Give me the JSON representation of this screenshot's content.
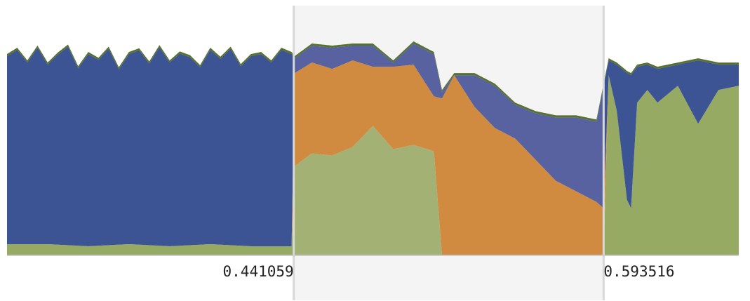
{
  "chart_data": {
    "type": "area",
    "stacked": true,
    "x_domain": [
      0.3,
      0.66
    ],
    "y_domain": [
      0,
      1
    ],
    "brush": {
      "range": [
        0.441059,
        0.593516
      ]
    },
    "tick_labels": [
      "0.441059",
      "0.593516"
    ],
    "colors": {
      "blue": "#3d5494",
      "blue_selected": "#5862a0",
      "orange": "#d08b40",
      "green": "#97aa63",
      "green_selected": "#a3b274",
      "dark_green": "#57722f",
      "brush_fill": "#f4f4f4",
      "brush_edge": "#d8d8d8",
      "axis": "#cccccc"
    },
    "series": [
      {
        "key": "green",
        "x": [
          0.3,
          0.32,
          0.34,
          0.36,
          0.38,
          0.4,
          0.42,
          0.44,
          0.4415,
          0.45,
          0.46,
          0.47,
          0.48,
          0.49,
          0.5,
          0.51,
          0.514,
          0.52,
          0.54,
          0.56,
          0.58,
          0.59,
          0.5935,
          0.596,
          0.6,
          0.605,
          0.607,
          0.61,
          0.615,
          0.62,
          0.63,
          0.64,
          0.65,
          0.66
        ],
        "values": [
          0.05,
          0.05,
          0.04,
          0.05,
          0.04,
          0.05,
          0.04,
          0.04,
          0.42,
          0.48,
          0.47,
          0.51,
          0.61,
          0.5,
          0.52,
          0.49,
          0.0,
          0.0,
          0.0,
          0.0,
          0.0,
          0.0,
          0.0,
          0.85,
          0.68,
          0.26,
          0.22,
          0.72,
          0.78,
          0.72,
          0.8,
          0.62,
          0.78,
          0.8
        ]
      },
      {
        "key": "orange",
        "x": [
          0.3,
          0.44,
          0.4415,
          0.45,
          0.46,
          0.47,
          0.48,
          0.49,
          0.5,
          0.51,
          0.514,
          0.52,
          0.53,
          0.54,
          0.55,
          0.56,
          0.57,
          0.58,
          0.59,
          0.5935,
          0.596,
          0.66
        ],
        "values": [
          0.0,
          0.0,
          0.44,
          0.43,
          0.41,
          0.41,
          0.28,
          0.39,
          0.38,
          0.26,
          0.74,
          0.85,
          0.7,
          0.6,
          0.55,
          0.45,
          0.35,
          0.3,
          0.25,
          0.22,
          0.0,
          0.0
        ]
      },
      {
        "key": "blue",
        "x": [
          0.3,
          0.305,
          0.31,
          0.315,
          0.32,
          0.325,
          0.33,
          0.335,
          0.34,
          0.345,
          0.35,
          0.355,
          0.36,
          0.365,
          0.37,
          0.375,
          0.38,
          0.385,
          0.39,
          0.395,
          0.4,
          0.405,
          0.41,
          0.415,
          0.42,
          0.425,
          0.43,
          0.435,
          0.44,
          0.4415,
          0.45,
          0.46,
          0.47,
          0.48,
          0.49,
          0.5,
          0.51,
          0.514,
          0.52,
          0.53,
          0.54,
          0.55,
          0.56,
          0.57,
          0.58,
          0.59,
          0.5935,
          0.596,
          0.6,
          0.605,
          0.607,
          0.61,
          0.615,
          0.62,
          0.63,
          0.64,
          0.65,
          0.66
        ],
        "values": [
          0.89,
          0.92,
          0.86,
          0.93,
          0.85,
          0.9,
          0.94,
          0.84,
          0.91,
          0.88,
          0.93,
          0.83,
          0.9,
          0.92,
          0.86,
          0.94,
          0.87,
          0.91,
          0.89,
          0.84,
          0.92,
          0.88,
          0.93,
          0.85,
          0.9,
          0.91,
          0.87,
          0.93,
          0.91,
          0.07,
          0.08,
          0.1,
          0.07,
          0.1,
          0.02,
          0.1,
          0.2,
          0.03,
          0.0,
          0.15,
          0.2,
          0.16,
          0.22,
          0.3,
          0.35,
          0.38,
          0.58,
          0.07,
          0.22,
          0.6,
          0.63,
          0.17,
          0.12,
          0.16,
          0.1,
          0.3,
          0.12,
          0.1
        ]
      },
      {
        "key": "dark_green",
        "x": [
          0.3,
          0.66
        ],
        "values": [
          0.01,
          0.01
        ]
      }
    ]
  }
}
